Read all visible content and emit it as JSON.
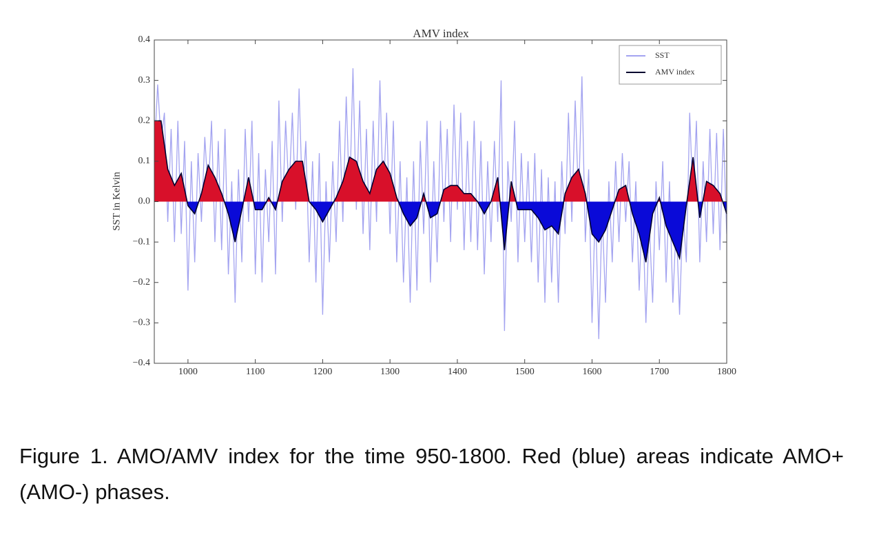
{
  "chart_data": {
    "type": "line",
    "title": "AMV index",
    "y_label": "SST in Kelvin",
    "xlim": [
      950,
      1800
    ],
    "ylim": [
      -0.4,
      0.4
    ],
    "xticks": [
      1000,
      1100,
      1200,
      1300,
      1400,
      1500,
      1600,
      1700,
      1800
    ],
    "yticks": [
      {
        "value": -0.4,
        "label": "−0.4"
      },
      {
        "value": -0.3,
        "label": "−0.3"
      },
      {
        "value": -0.2,
        "label": "−0.2"
      },
      {
        "value": -0.1,
        "label": "−0.1"
      },
      {
        "value": 0,
        "label": "0.0"
      },
      0.1,
      0.2,
      0.3,
      0.4
    ],
    "legend": "upper right",
    "fill_positive": "#d8102a",
    "fill_negative": "#0a0ad8",
    "series": [
      {
        "name": "SST",
        "color": "#a3a3f0",
        "x": [
          950,
          955,
          960,
          965,
          970,
          975,
          980,
          985,
          990,
          995,
          1000,
          1005,
          1010,
          1015,
          1020,
          1025,
          1030,
          1035,
          1040,
          1045,
          1050,
          1055,
          1060,
          1065,
          1070,
          1075,
          1080,
          1085,
          1090,
          1095,
          1100,
          1105,
          1110,
          1115,
          1120,
          1125,
          1130,
          1135,
          1140,
          1145,
          1150,
          1155,
          1160,
          1165,
          1170,
          1175,
          1180,
          1185,
          1190,
          1195,
          1200,
          1205,
          1210,
          1215,
          1220,
          1225,
          1230,
          1235,
          1240,
          1245,
          1250,
          1255,
          1260,
          1265,
          1270,
          1275,
          1280,
          1285,
          1290,
          1295,
          1300,
          1305,
          1310,
          1315,
          1320,
          1325,
          1330,
          1335,
          1340,
          1345,
          1350,
          1355,
          1360,
          1365,
          1370,
          1375,
          1380,
          1385,
          1390,
          1395,
          1400,
          1405,
          1410,
          1415,
          1420,
          1425,
          1430,
          1435,
          1440,
          1445,
          1450,
          1455,
          1460,
          1465,
          1470,
          1475,
          1480,
          1485,
          1490,
          1495,
          1500,
          1505,
          1510,
          1515,
          1520,
          1525,
          1530,
          1535,
          1540,
          1545,
          1550,
          1555,
          1560,
          1565,
          1570,
          1575,
          1580,
          1585,
          1590,
          1595,
          1600,
          1605,
          1610,
          1615,
          1620,
          1625,
          1630,
          1635,
          1640,
          1645,
          1650,
          1655,
          1660,
          1665,
          1670,
          1675,
          1680,
          1685,
          1690,
          1695,
          1700,
          1705,
          1710,
          1715,
          1720,
          1725,
          1730,
          1735,
          1740,
          1745,
          1750,
          1755,
          1760,
          1765,
          1770,
          1775,
          1780,
          1785,
          1790,
          1795,
          1800
        ],
        "values": [
          0.12,
          0.29,
          0.15,
          0.22,
          -0.05,
          0.18,
          -0.1,
          0.2,
          -0.08,
          0.15,
          -0.22,
          0.1,
          -0.15,
          0.12,
          -0.05,
          0.16,
          0.02,
          0.2,
          -0.1,
          0.15,
          -0.12,
          0.18,
          -0.18,
          0.05,
          -0.25,
          0.08,
          -0.15,
          0.18,
          -0.05,
          0.2,
          -0.18,
          0.12,
          -0.2,
          0.08,
          -0.1,
          0.15,
          -0.18,
          0.25,
          -0.05,
          0.2,
          0.02,
          0.22,
          -0.02,
          0.28,
          0.0,
          0.15,
          -0.15,
          0.1,
          -0.2,
          0.12,
          -0.28,
          0.05,
          -0.15,
          0.1,
          -0.1,
          0.2,
          -0.05,
          0.26,
          0.0,
          0.33,
          -0.02,
          0.25,
          -0.08,
          0.18,
          -0.12,
          0.2,
          -0.05,
          0.3,
          0.0,
          0.22,
          -0.08,
          0.2,
          -0.15,
          0.1,
          -0.2,
          0.06,
          -0.25,
          0.1,
          -0.22,
          0.15,
          -0.08,
          0.2,
          -0.2,
          0.1,
          -0.15,
          0.2,
          -0.05,
          0.18,
          -0.1,
          0.24,
          -0.02,
          0.22,
          -0.12,
          0.15,
          -0.1,
          0.2,
          -0.12,
          0.15,
          -0.18,
          0.1,
          -0.1,
          0.15,
          -0.05,
          0.3,
          -0.32,
          0.1,
          -0.05,
          0.2,
          -0.15,
          0.12,
          -0.1,
          0.1,
          -0.15,
          0.12,
          -0.2,
          0.08,
          -0.25,
          0.06,
          -0.2,
          0.05,
          -0.25,
          0.1,
          -0.08,
          0.22,
          -0.05,
          0.25,
          0.0,
          0.31,
          -0.1,
          0.08,
          -0.3,
          0.0,
          -0.34,
          -0.02,
          -0.25,
          0.05,
          -0.15,
          0.1,
          -0.1,
          0.12,
          -0.05,
          0.1,
          -0.15,
          0.05,
          -0.22,
          0.0,
          -0.3,
          -0.05,
          -0.25,
          0.05,
          -0.12,
          0.1,
          -0.2,
          0.05,
          -0.25,
          -0.05,
          -0.28,
          -0.02,
          -0.15,
          0.22,
          0.0,
          0.2,
          -0.15,
          0.1,
          -0.1,
          0.18,
          -0.08,
          0.17,
          -0.12,
          0.18,
          -0.08
        ]
      },
      {
        "name": "AMV index",
        "color": "#00002e",
        "x": [
          950,
          960,
          970,
          980,
          990,
          1000,
          1010,
          1020,
          1030,
          1040,
          1050,
          1060,
          1070,
          1080,
          1090,
          1100,
          1110,
          1120,
          1130,
          1140,
          1150,
          1160,
          1170,
          1180,
          1190,
          1200,
          1210,
          1220,
          1230,
          1240,
          1250,
          1260,
          1270,
          1280,
          1290,
          1300,
          1310,
          1320,
          1330,
          1340,
          1350,
          1360,
          1370,
          1380,
          1390,
          1400,
          1410,
          1420,
          1430,
          1440,
          1450,
          1460,
          1470,
          1480,
          1490,
          1500,
          1510,
          1520,
          1530,
          1540,
          1550,
          1560,
          1570,
          1580,
          1590,
          1600,
          1610,
          1620,
          1630,
          1640,
          1650,
          1660,
          1670,
          1680,
          1690,
          1700,
          1710,
          1720,
          1730,
          1740,
          1750,
          1760,
          1770,
          1780,
          1790,
          1800
        ],
        "values": [
          0.2,
          0.2,
          0.08,
          0.04,
          0.07,
          -0.01,
          -0.03,
          0.02,
          0.09,
          0.06,
          0.02,
          -0.03,
          -0.1,
          -0.02,
          0.06,
          -0.02,
          -0.02,
          0.01,
          -0.02,
          0.05,
          0.08,
          0.1,
          0.1,
          0.0,
          -0.02,
          -0.05,
          -0.02,
          0.01,
          0.05,
          0.11,
          0.1,
          0.05,
          0.02,
          0.08,
          0.1,
          0.07,
          0.01,
          -0.03,
          -0.06,
          -0.04,
          0.02,
          -0.04,
          -0.03,
          0.03,
          0.04,
          0.04,
          0.02,
          0.02,
          0.0,
          -0.03,
          0.0,
          0.06,
          -0.12,
          0.05,
          -0.02,
          -0.02,
          -0.02,
          -0.04,
          -0.07,
          -0.06,
          -0.08,
          0.02,
          0.06,
          0.08,
          0.02,
          -0.08,
          -0.1,
          -0.07,
          -0.02,
          0.03,
          0.04,
          -0.03,
          -0.08,
          -0.15,
          -0.03,
          0.01,
          -0.06,
          -0.1,
          -0.14,
          -0.01,
          0.11,
          -0.04,
          0.05,
          0.04,
          0.02,
          -0.03
        ]
      }
    ]
  },
  "caption": "Figure 1. AMO/AMV index for the time 950-1800. Red (blue) areas indicate AMO+ (AMO-) phases."
}
